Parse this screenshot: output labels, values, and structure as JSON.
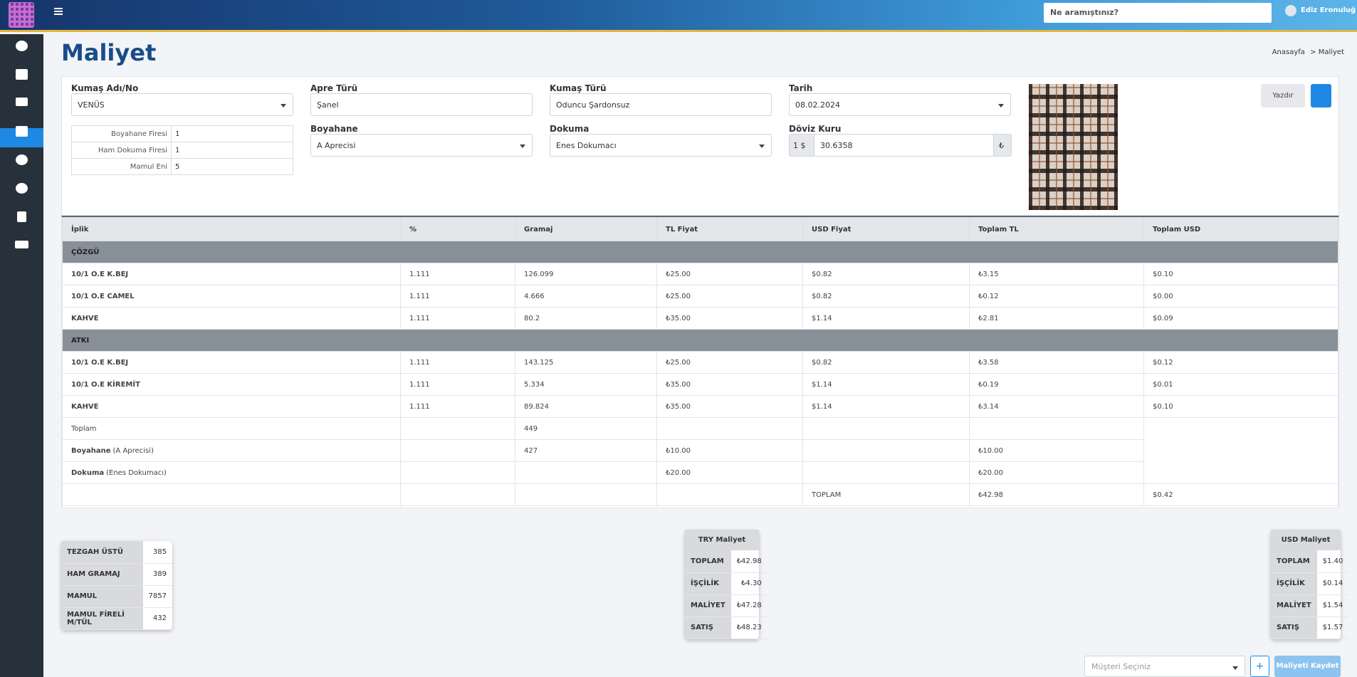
{
  "header": {
    "search_placeholder": "Ne aramıştınız?",
    "user": "Ediz Eronuluğ"
  },
  "page": {
    "title": "Maliyet",
    "breadcrumb": [
      "Anasayfa",
      "Maliyet"
    ]
  },
  "form": {
    "fields": [
      {
        "label": "Kumaş Adı/No",
        "value": "VENÜS"
      },
      {
        "label": "Apre Türü",
        "value": "Şanel"
      },
      {
        "label": "Kumaş Türü",
        "value": "Oduncu Şardonsuz"
      },
      {
        "label": "Tarih",
        "value": "08.02.2024"
      },
      {
        "label": "Boyahane",
        "value": "A Aprecisi"
      },
      {
        "label": "Dokuma",
        "value": "Enes Dokumacı"
      }
    ],
    "exchange": {
      "label": "Döviz Kuru",
      "prefix": "1 $",
      "value": "30.6358",
      "suffix": "₺"
    },
    "losses": [
      [
        "Boyahane Firesi",
        "1"
      ],
      [
        "Ham Dokuma Firesi",
        "1"
      ],
      [
        "Mamul Eni",
        "5"
      ]
    ],
    "print_button": "Yazdır"
  },
  "table": {
    "columns": [
      "İplik",
      "%",
      "Gramaj",
      "TL Fiyat",
      "USD Fiyat",
      "Toplam TL",
      "Toplam USD"
    ],
    "groups": [
      {
        "name": "ÇÖZGÜ",
        "rows": [
          [
            "10/1 O.E K.BEJ",
            "1.111",
            "126.099",
            "₺25.00",
            "$0.82",
            "₺3.15",
            "$0.10"
          ],
          [
            "10/1 O.E CAMEL",
            "1.111",
            "4.666",
            "₺25.00",
            "$0.82",
            "₺0.12",
            "$0.00"
          ],
          [
            "KAHVE",
            "1.111",
            "80.2",
            "₺35.00",
            "$1.14",
            "₺2.81",
            "$0.09"
          ]
        ]
      },
      {
        "name": "ATKI",
        "rows": [
          [
            "10/1 O.E K.BEJ",
            "1.111",
            "143.125",
            "₺25.00",
            "$0.82",
            "₺3.58",
            "$0.12"
          ],
          [
            "10/1 O.E KİREMİT",
            "1.111",
            "5.334",
            "₺35.00",
            "$1.14",
            "₺0.19",
            "$0.01"
          ],
          [
            "KAHVE",
            "1.111",
            "89.824",
            "₺35.00",
            "$1.14",
            "₺3.14",
            "$0.10"
          ]
        ]
      }
    ],
    "totals": [
      {
        "label": "Toplam",
        "gramaj": "449"
      },
      {
        "label": "Boyahane",
        "note": "(A Aprecisi)",
        "gramaj": "427",
        "tl_fiyat": "₺10.00",
        "toplam_tl": "₺10.00"
      },
      {
        "label": "Dokuma",
        "note": "(Enes Dokumacı)",
        "tl_fiyat": "₺20.00",
        "toplam_tl": "₺20.00"
      },
      {
        "usd_fiyat": "TOPLAM",
        "toplam_tl": "₺42.98",
        "toplam_usd": "$0.42"
      }
    ]
  },
  "summary": {
    "production": [
      [
        "TEZGAH ÜSTÜ",
        "385"
      ],
      [
        "HAM GRAMAJ",
        "389"
      ],
      [
        "MAMUL",
        "7857"
      ],
      [
        "MAMUL FİRELİ M/TÜL",
        "432"
      ]
    ],
    "try": {
      "title": "TRY Maliyet",
      "rows": [
        [
          "TOPLAM",
          "₺42.98"
        ],
        [
          "İŞÇİLİK",
          "₺4.30"
        ],
        [
          "MALİYET",
          "₺47.28"
        ],
        [
          "SATIŞ",
          "₺48.23"
        ]
      ]
    },
    "usd": {
      "title": "USD Maliyet",
      "rows": [
        [
          "TOPLAM",
          "$1.40"
        ],
        [
          "İŞÇİLİK",
          "$0.14"
        ],
        [
          "MALİYET",
          "$1.54"
        ],
        [
          "SATIŞ",
          "$1.57"
        ]
      ]
    }
  },
  "footer": {
    "customer_placeholder": "Müşteri Seçiniz",
    "add_button": "+",
    "save_button": "Maliyeti Kaydet"
  }
}
